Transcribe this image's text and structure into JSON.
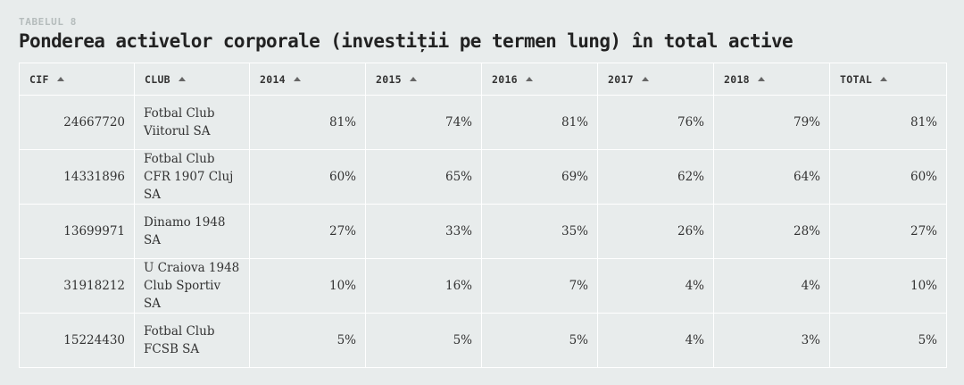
{
  "header": {
    "eyebrow": "TABELUL 8",
    "title": "Ponderea activelor corporale (investiții pe termen lung) în total active"
  },
  "table": {
    "columns": [
      "CIF",
      "CLUB",
      "2014",
      "2015",
      "2016",
      "2017",
      "2018",
      "TOTAL"
    ],
    "sort_icon": "sort-ascending-icon",
    "rows": [
      [
        "24667720",
        "Fotbal Club Viitorul SA",
        "81%",
        "74%",
        "81%",
        "76%",
        "79%",
        "81%"
      ],
      [
        "14331896",
        "Fotbal Club CFR 1907 Cluj SA",
        "60%",
        "65%",
        "69%",
        "62%",
        "64%",
        "60%"
      ],
      [
        "13699971",
        "Dinamo 1948 SA",
        "27%",
        "33%",
        "35%",
        "26%",
        "28%",
        "27%"
      ],
      [
        "31918212",
        "U Craiova 1948 Club Sportiv SA",
        "10%",
        "16%",
        "7%",
        "4%",
        "4%",
        "10%"
      ],
      [
        "15224430",
        "Fotbal Club FCSB SA",
        "5%",
        "5%",
        "5%",
        "4%",
        "3%",
        "5%"
      ]
    ]
  }
}
